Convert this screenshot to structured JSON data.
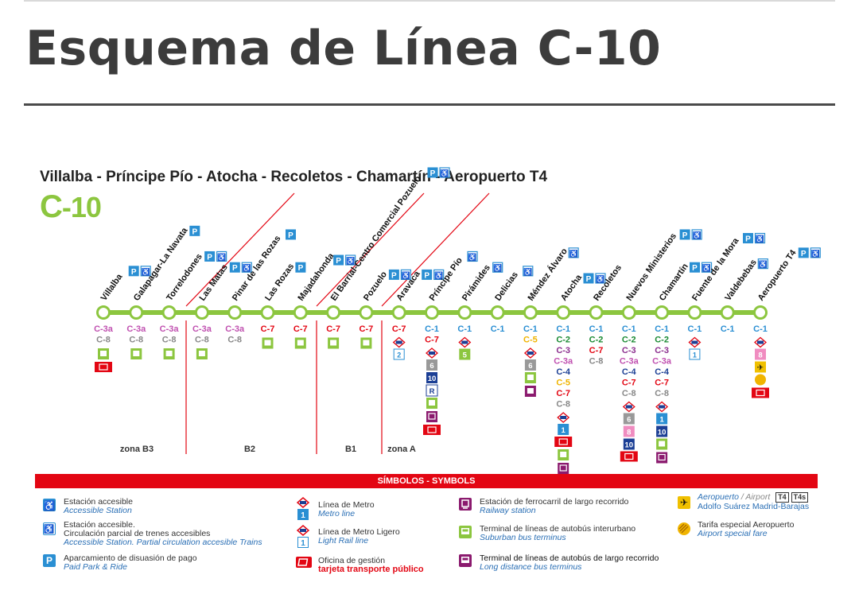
{
  "title": "Esquema de Línea C-10",
  "route": "Villalba - Príncipe Pío - Atocha - Recoletos - Chamartín - Aeropuerto T4",
  "line_logo": {
    "c": "C",
    "num": "-10",
    "color": "#8cc63f"
  },
  "colors": {
    "line": "#8cc63f",
    "c1": "#2a8fd3",
    "c2": "#1a8a32",
    "c3": "#8b2e8e",
    "c3a": "#c050b0",
    "c4": "#1c3f95",
    "c5": "#f0b400",
    "c7": "#e30613",
    "c8": "#888888",
    "access": "#2a8fd3",
    "red": "#e30613"
  },
  "stations": [
    {
      "name": "Villalba",
      "lines": [
        "C-3a",
        "C-8"
      ],
      "services": [
        "bus",
        "card"
      ],
      "icons": [
        "P",
        "acc"
      ]
    },
    {
      "name": "Galapagar-La Navata",
      "lines": [
        "C-3a",
        "C-8"
      ],
      "services": [
        "bus"
      ],
      "icons": [
        "P"
      ]
    },
    {
      "name": "Torrelodones",
      "lines": [
        "C-3a",
        "C-8"
      ],
      "services": [
        "bus"
      ],
      "icons": [
        "P",
        "acc"
      ]
    },
    {
      "name": "Las Matas",
      "lines": [
        "C-3a",
        "C-8"
      ],
      "services": [
        "bus"
      ],
      "icons": [
        "P",
        "acc"
      ]
    },
    {
      "name": "Pinar de las Rozas",
      "lines": [
        "C-3a",
        "C-8"
      ],
      "services": [],
      "icons": [
        "P"
      ]
    },
    {
      "name": "Las Rozas",
      "lines": [
        "C-7"
      ],
      "services": [
        "bus"
      ],
      "icons": [
        "P"
      ]
    },
    {
      "name": "Majadahonda",
      "lines": [
        "C-7"
      ],
      "services": [
        "bus"
      ],
      "icons": [
        "P",
        "acc"
      ]
    },
    {
      "name": "El Barrial-Centro Comercial Pozuelo",
      "lines": [
        "C-7"
      ],
      "services": [
        "bus"
      ],
      "icons": [
        "P",
        "acc"
      ]
    },
    {
      "name": "Pozuelo",
      "lines": [
        "C-7"
      ],
      "services": [
        "bus"
      ],
      "icons": [
        "P",
        "acc"
      ]
    },
    {
      "name": "Aravaca",
      "lines": [
        "C-7"
      ],
      "services": [
        "metro-light"
      ],
      "icons": [
        "P",
        "acc"
      ]
    },
    {
      "name": "Príncipe Pío",
      "lines": [
        "C-1",
        "C-7"
      ],
      "services": [
        "metro",
        "6",
        "10",
        "R",
        "bus",
        "rail",
        "card"
      ],
      "icons": [
        "acc"
      ]
    },
    {
      "name": "Pirámides",
      "lines": [
        "C-1"
      ],
      "services": [
        "metro",
        "5"
      ],
      "icons": [
        "acc"
      ]
    },
    {
      "name": "Delicias",
      "lines": [
        "C-1"
      ],
      "services": [],
      "icons": [
        "acc"
      ]
    },
    {
      "name": "Méndez Álvaro",
      "lines": [
        "C-1",
        "C-5"
      ],
      "services": [
        "metro",
        "6",
        "bus",
        "ldbus"
      ],
      "icons": [
        "acc"
      ]
    },
    {
      "name": "Atocha",
      "lines": [
        "C-1",
        "C-2",
        "C-3",
        "C-3a",
        "C-4",
        "C-5",
        "C-7",
        "C-8"
      ],
      "services": [
        "metro",
        "1",
        "card",
        "bus",
        "rail"
      ],
      "icons": [
        "P",
        "acc"
      ]
    },
    {
      "name": "Recoletos",
      "lines": [
        "C-1",
        "C-2",
        "C-7",
        "C-8"
      ],
      "services": [],
      "icons": []
    },
    {
      "name": "Nuevos Ministerios",
      "lines": [
        "C-1",
        "C-2",
        "C-3",
        "C-3a",
        "C-4",
        "C-7",
        "C-8"
      ],
      "services": [
        "metro",
        "6",
        "8",
        "10",
        "card"
      ],
      "icons": [
        "P",
        "acc"
      ]
    },
    {
      "name": "Chamartín",
      "lines": [
        "C-1",
        "C-2",
        "C-3",
        "C-3a",
        "C-4",
        "C-7",
        "C-8"
      ],
      "services": [
        "metro",
        "1",
        "10",
        "bus",
        "rail"
      ],
      "icons": [
        "P",
        "acc"
      ]
    },
    {
      "name": "Fuente de la Mora",
      "lines": [
        "C-1"
      ],
      "services": [
        "metro-light"
      ],
      "icons": [
        "P",
        "acc"
      ]
    },
    {
      "name": "Valdebebas",
      "lines": [
        "C-1"
      ],
      "services": [],
      "icons": [
        "acc"
      ]
    },
    {
      "name": "Aeropuerto T4",
      "lines": [
        "C-1"
      ],
      "services": [
        "metro",
        "8",
        "plane",
        "fare",
        "card"
      ],
      "icons": [
        "P",
        "acc"
      ]
    }
  ],
  "zones": [
    "zona B3",
    "B2",
    "B1",
    "zona A"
  ],
  "symbols_header": "SÍMBOLOS - SYMBOLS",
  "legend": [
    {
      "es": "Estación accesible",
      "en": "Accessible Station"
    },
    {
      "es": "Estación accesible.",
      "es2": "Circulación parcial de trenes accesibles",
      "en": "Accessible Station. Partial circulation accesible Trains"
    },
    {
      "es": "Aparcamiento de disuasión de pago",
      "en": "Paid Park & Ride"
    },
    {
      "es": "Línea de Metro",
      "en": "Metro line"
    },
    {
      "es": "Línea de Metro Ligero",
      "en": "Light Rail line"
    },
    {
      "es": "Oficina de gestión",
      "red": "tarjeta transporte público"
    },
    {
      "es": "Estación de ferrocarril de largo recorrido",
      "en": "Railway station"
    },
    {
      "es": "Terminal de líneas de autobús interurbano",
      "en": "Suburban bus terminus"
    },
    {
      "es": "Terminal de líneas de autobús de largo recorrido",
      "en": "Long distance bus terminus"
    },
    {
      "es": "Aeropuerto",
      "sep": " / ",
      "es_en": "Airport",
      "t4": "T4",
      "t4s": "T4s",
      "en": "Adolfo Suárez Madrid-Barajas"
    },
    {
      "es": "Tarifa especial Aeropuerto",
      "en": "Airport special fare"
    }
  ]
}
